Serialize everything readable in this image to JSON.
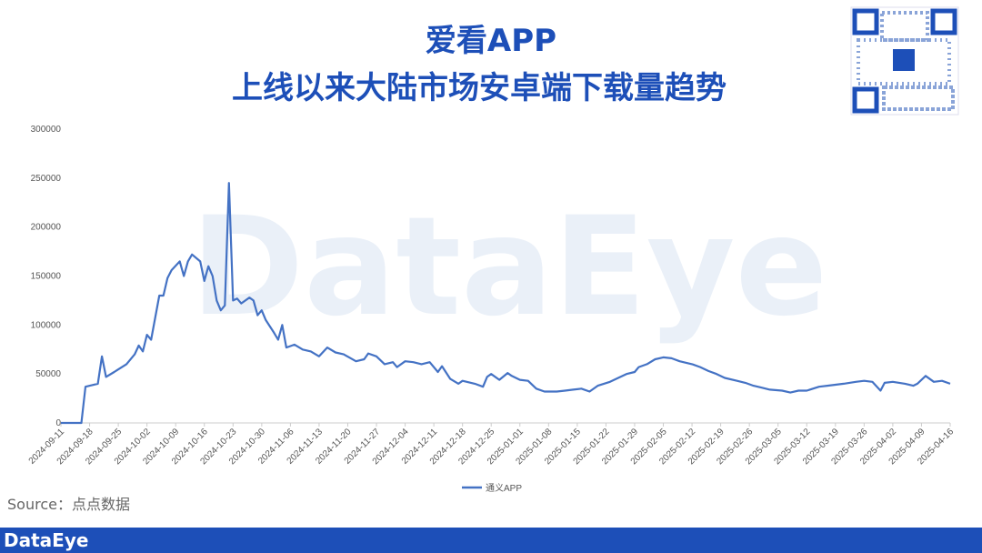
{
  "chart_data": {
    "type": "line",
    "title": "爱看APP",
    "subtitle": "上线以来大陆市场安卓端下载量趋势",
    "watermark": "DataEye",
    "source": "Source：点点数据",
    "footer": "DataEye",
    "x": [
      "2024-09-11",
      "2024-09-16",
      "2024-09-17",
      "2024-09-20",
      "2024-09-21",
      "2024-09-22",
      "2024-09-24",
      "2024-09-27",
      "2024-09-29",
      "2024-09-30",
      "2024-10-01",
      "2024-10-02",
      "2024-10-03",
      "2024-10-05",
      "2024-10-06",
      "2024-10-07",
      "2024-10-08",
      "2024-10-10",
      "2024-10-11",
      "2024-10-12",
      "2024-10-13",
      "2024-10-15",
      "2024-10-16",
      "2024-10-17",
      "2024-10-18",
      "2024-10-19",
      "2024-10-20",
      "2024-10-21",
      "2024-10-22",
      "2024-10-23",
      "2024-10-24",
      "2024-10-25",
      "2024-10-27",
      "2024-10-28",
      "2024-10-29",
      "2024-10-30",
      "2024-10-31",
      "2024-11-02",
      "2024-11-03",
      "2024-11-04",
      "2024-11-05",
      "2024-11-07",
      "2024-11-09",
      "2024-11-11",
      "2024-11-13",
      "2024-11-15",
      "2024-11-17",
      "2024-11-19",
      "2024-11-22",
      "2024-11-24",
      "2024-11-25",
      "2024-11-27",
      "2024-11-29",
      "2024-12-01",
      "2024-12-02",
      "2024-12-04",
      "2024-12-06",
      "2024-12-08",
      "2024-12-10",
      "2024-12-12",
      "2024-12-13",
      "2024-12-15",
      "2024-12-17",
      "2024-12-18",
      "2024-12-21",
      "2024-12-23",
      "2024-12-24",
      "2024-12-25",
      "2024-12-27",
      "2024-12-29",
      "2024-12-30",
      "2025-01-01",
      "2025-01-03",
      "2025-01-05",
      "2025-01-07",
      "2025-01-10",
      "2025-01-12",
      "2025-01-14",
      "2025-01-16",
      "2025-01-18",
      "2025-01-20",
      "2025-01-23",
      "2025-01-25",
      "2025-01-27",
      "2025-01-29",
      "2025-01-30",
      "2025-02-01",
      "2025-02-03",
      "2025-02-05",
      "2025-02-07",
      "2025-02-09",
      "2025-02-12",
      "2025-02-14",
      "2025-02-16",
      "2025-02-18",
      "2025-02-20",
      "2025-02-23",
      "2025-02-25",
      "2025-02-27",
      "2025-03-01",
      "2025-03-03",
      "2025-03-06",
      "2025-03-08",
      "2025-03-10",
      "2025-03-12",
      "2025-03-15",
      "2025-03-17",
      "2025-03-19",
      "2025-03-21",
      "2025-03-24",
      "2025-03-26",
      "2025-03-28",
      "2025-03-30",
      "2025-03-31",
      "2025-04-02",
      "2025-04-05",
      "2025-04-07",
      "2025-04-08",
      "2025-04-10",
      "2025-04-12",
      "2025-04-14",
      "2025-04-16"
    ],
    "series": [
      {
        "name": "通义APP",
        "color": "#4472c4",
        "values": [
          0,
          0,
          37000,
          40000,
          68000,
          47000,
          52000,
          60000,
          70000,
          79000,
          73000,
          90000,
          85000,
          130000,
          130000,
          148000,
          156000,
          165000,
          150000,
          165000,
          172000,
          165000,
          145000,
          160000,
          150000,
          125000,
          115000,
          120000,
          245000,
          125000,
          127000,
          122000,
          128000,
          125000,
          110000,
          115000,
          105000,
          92000,
          85000,
          100000,
          77000,
          80000,
          75000,
          73000,
          68000,
          77000,
          72000,
          70000,
          63000,
          65000,
          71000,
          68000,
          60000,
          62000,
          57000,
          63000,
          62000,
          60000,
          62000,
          52000,
          58000,
          45000,
          40000,
          43000,
          40000,
          37000,
          47000,
          50000,
          44000,
          51000,
          48000,
          44000,
          43000,
          35000,
          32000,
          32000,
          33000,
          34000,
          35000,
          32000,
          38000,
          42000,
          46000,
          50000,
          52000,
          57000,
          60000,
          65000,
          67000,
          66000,
          63000,
          60000,
          57000,
          53000,
          50000,
          46000,
          43000,
          41000,
          38000,
          36000,
          34000,
          33000,
          31000,
          33000,
          33000,
          37000,
          38000,
          39000,
          40000,
          42000,
          43000,
          42000,
          33000,
          41000,
          42000,
          40000,
          38000,
          40000,
          48000,
          42000,
          43000,
          40000
        ]
      }
    ],
    "xlim": [
      "2024-09-11",
      "2025-04-16"
    ],
    "xticks": [
      "2024-09-11",
      "2024-09-18",
      "2024-09-25",
      "2024-10-02",
      "2024-10-09",
      "2024-10-16",
      "2024-10-23",
      "2024-10-30",
      "2024-11-06",
      "2024-11-13",
      "2024-11-20",
      "2024-11-27",
      "2024-12-04",
      "2024-12-11",
      "2024-12-18",
      "2024-12-25",
      "2025-01-01",
      "2025-01-08",
      "2025-01-15",
      "2025-01-22",
      "2025-01-29",
      "2025-02-05",
      "2025-02-12",
      "2025-02-19",
      "2025-02-26",
      "2025-03-05",
      "2025-03-12",
      "2025-03-19",
      "2025-03-26",
      "2025-04-02",
      "2025-04-09",
      "2025-04-16"
    ],
    "ylim": [
      0,
      300000
    ],
    "yticks": [
      0,
      50000,
      100000,
      150000,
      200000,
      250000,
      300000
    ]
  }
}
